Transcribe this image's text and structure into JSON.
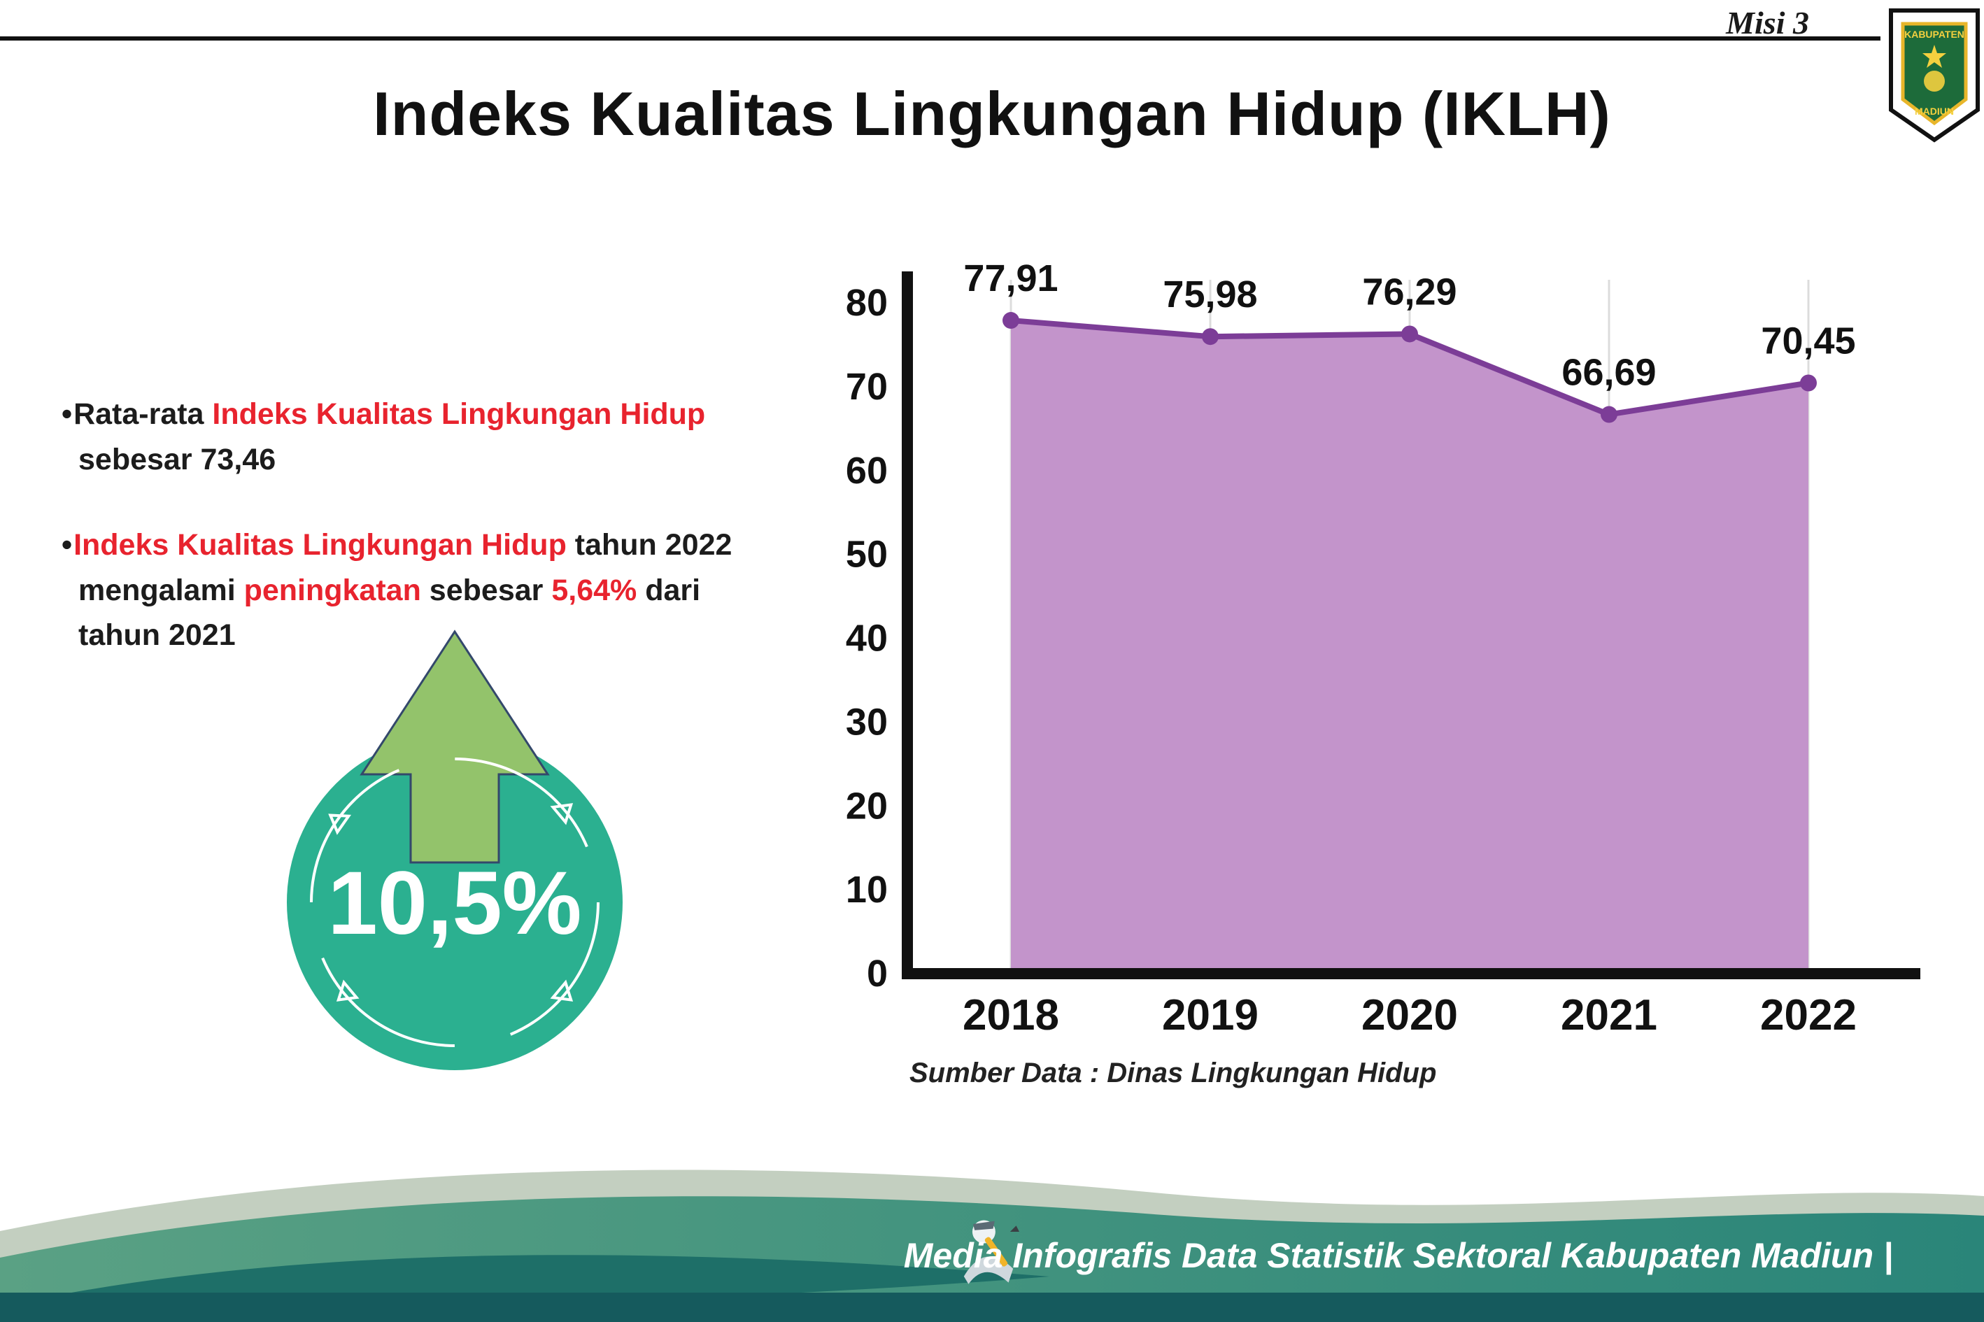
{
  "header": {
    "misi_label": "Misi 3",
    "title": "Indeks Kualitas Lingkungan Hidup (IKLH)",
    "logo": {
      "top_text": "KABUPATEN",
      "bottom_text": "MADIUN"
    }
  },
  "bullets": {
    "b1": {
      "t1": "Rata-rata ",
      "t2": "Indeks Kualitas Lingkungan Hidup",
      "t3": " sebesar 73,46"
    },
    "b2": {
      "t1": "Indeks Kualitas Lingkungan Hidup",
      "t2": " tahun 2022 mengalami ",
      "t3": "peningkatan",
      "t4": " sebesar ",
      "t5": "5,64%",
      "t6": " dari tahun 2021"
    }
  },
  "highlight": {
    "value": "10,5%",
    "circle_color": "#2bb090",
    "arrow_color": "#93c36b"
  },
  "chart_data": {
    "type": "area",
    "categories": [
      "2018",
      "2019",
      "2020",
      "2021",
      "2022"
    ],
    "values": [
      77.91,
      75.98,
      76.29,
      66.69,
      70.45
    ],
    "value_labels": [
      "77,91",
      "75,98",
      "76,29",
      "66,69",
      "70,45"
    ],
    "title": "",
    "xlabel": "",
    "ylabel": "",
    "ylim": [
      0,
      80
    ],
    "yticks": [
      0,
      10,
      20,
      30,
      40,
      50,
      60,
      70,
      80
    ],
    "grid": "vertical-light",
    "legend": "none",
    "line_color": "#7c3d97",
    "fill_color": "#c394cb",
    "point_color": "#7c3d97"
  },
  "source_note": "Sumber Data : Dinas Lingkungan Hidup",
  "footer": {
    "caption": "Media Infografis Data Statistik Sektoral Kabupaten Madiun |"
  }
}
